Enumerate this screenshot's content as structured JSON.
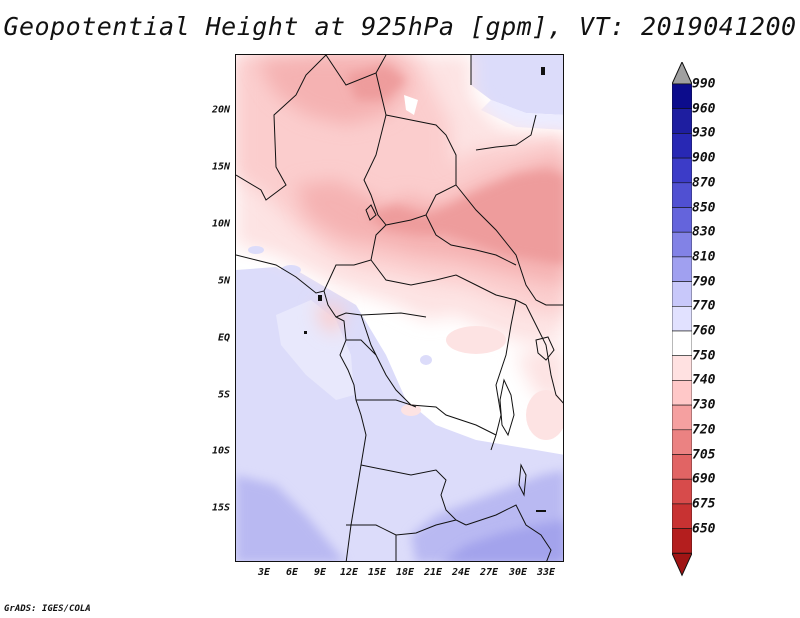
{
  "title": "Geopotential Height at 925hPa [gpm], VT: 2019041200",
  "footer": "GrADS: IGES/COLA",
  "map": {
    "lat_labels": [
      "20N",
      "15N",
      "10N",
      "5N",
      "EQ",
      "5S",
      "10S",
      "15S"
    ],
    "lon_labels": [
      "3E",
      "6E",
      "9E",
      "12E",
      "15E",
      "18E",
      "21E",
      "24E",
      "27E",
      "30E",
      "33E"
    ]
  },
  "colorbar": {
    "levels": [
      "990",
      "960",
      "930",
      "900",
      "870",
      "850",
      "830",
      "810",
      "790",
      "770",
      "760",
      "750",
      "740",
      "730",
      "720",
      "705",
      "690",
      "675",
      "650"
    ],
    "colors": [
      "#a0a0a0",
      "#0c0c8c",
      "#1e1ea0",
      "#2828b4",
      "#3c3cc8",
      "#5050d2",
      "#6464dc",
      "#8282e6",
      "#a0a0f0",
      "#c8c8fa",
      "#e1e1ff",
      "#ffffff",
      "#ffe1e1",
      "#ffc8c8",
      "#f5a0a0",
      "#eb8282",
      "#e16464",
      "#d74b4b",
      "#c83232",
      "#b41e1e",
      "#a01414"
    ]
  }
}
